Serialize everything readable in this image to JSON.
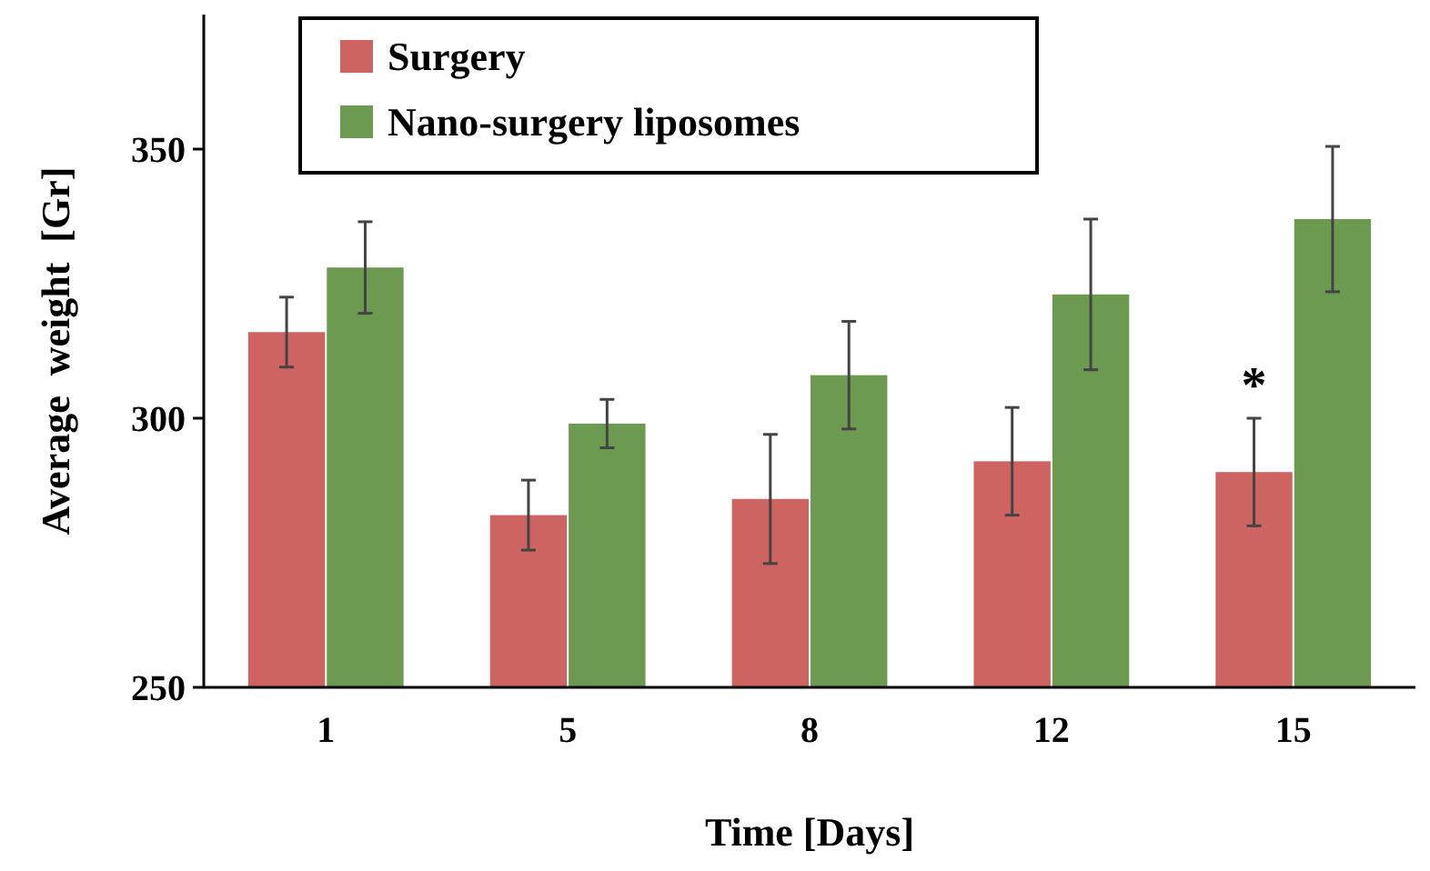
{
  "chart_data": {
    "type": "bar",
    "xlabel": "Time  [Days]",
    "ylabel": "Average  weight  [Gr]",
    "categories": [
      "1",
      "5",
      "8",
      "12",
      "15"
    ],
    "series": [
      {
        "name": "Surgery",
        "color": "#cd6462",
        "values": [
          316,
          282,
          285,
          292,
          290
        ],
        "errors": [
          6.5,
          6.5,
          12,
          10,
          10
        ]
      },
      {
        "name": "Nano-surgery liposomes",
        "color": "#6c9a50",
        "values": [
          328,
          299,
          308,
          323,
          337
        ],
        "errors": [
          8.5,
          4.5,
          10,
          14,
          13.5
        ]
      }
    ],
    "ylim": [
      250,
      375
    ],
    "yticks": [
      250,
      300,
      350
    ],
    "grid": false,
    "legend": "top",
    "annotations": [
      {
        "text": "*",
        "x": "15",
        "y": 303
      }
    ]
  }
}
